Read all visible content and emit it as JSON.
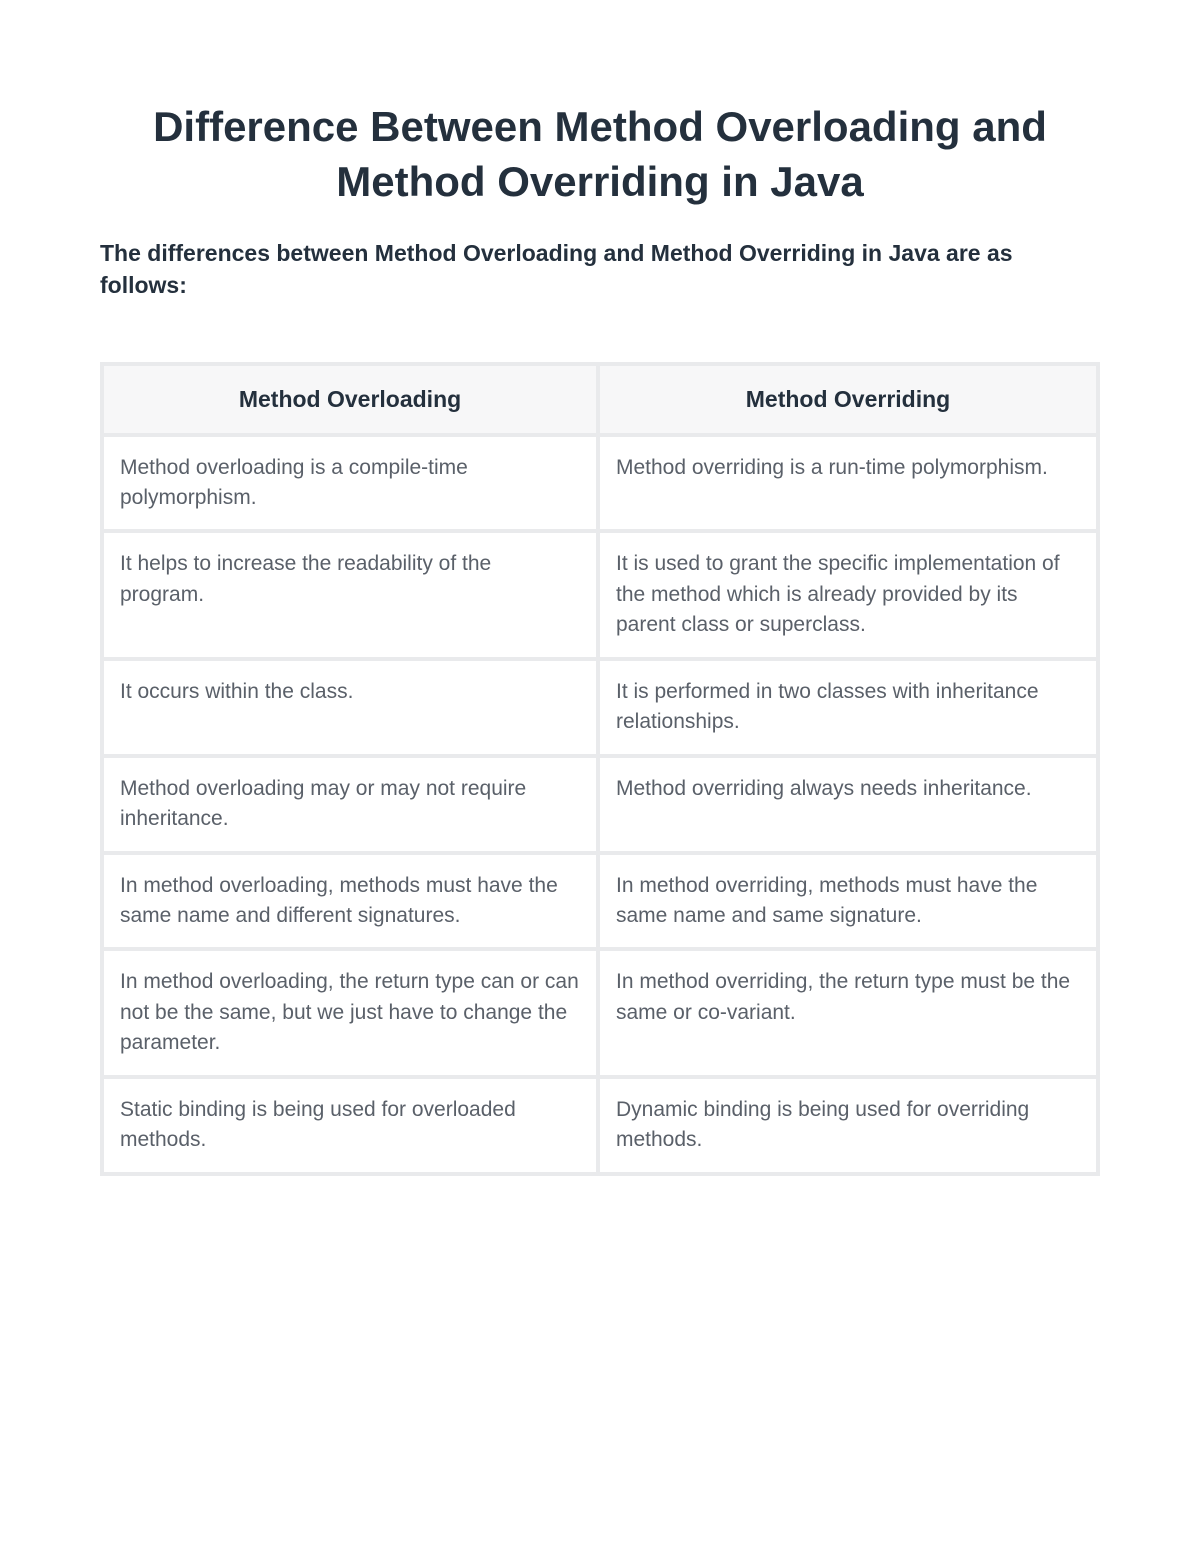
{
  "title": "Difference Between Method Overloading and Method Overriding in Java",
  "intro": "The differences between Method Overloading and Method Overriding in Java are as follows:",
  "table": {
    "columns": [
      "Method Overloading",
      "Method Overriding"
    ],
    "rows": [
      [
        "Method overloading is a compile-time polymorphism.",
        "Method overriding is a run-time polymorphism."
      ],
      [
        "It helps to increase the readability of the program.",
        "It is used to grant the specific implementation of the method which is already provided by its parent class or superclass."
      ],
      [
        "It occurs within the class.",
        "It is performed in two classes with inheritance relationships."
      ],
      [
        "Method overloading may or may not require inheritance.",
        "Method overriding always needs inheritance."
      ],
      [
        "In method overloading, methods must have the same name and different signatures.",
        "In method overriding, methods must have the same name and same signature."
      ],
      [
        "In method overloading, the return type can or can not be the same, but we just have to change the parameter.",
        "In method overriding, the return type must be the same or co-variant."
      ],
      [
        "Static binding is being used for overloaded methods.",
        "Dynamic binding is being used for overriding methods."
      ]
    ],
    "colors": {
      "heading_text": "#24303d",
      "body_text": "#5a6069",
      "header_bg": "#f7f7f8",
      "border": "#e9eaec",
      "page_bg": "#ffffff"
    },
    "typography": {
      "title_fontsize": 42,
      "intro_fontsize": 23,
      "header_fontsize": 23,
      "cell_fontsize": 21
    }
  }
}
